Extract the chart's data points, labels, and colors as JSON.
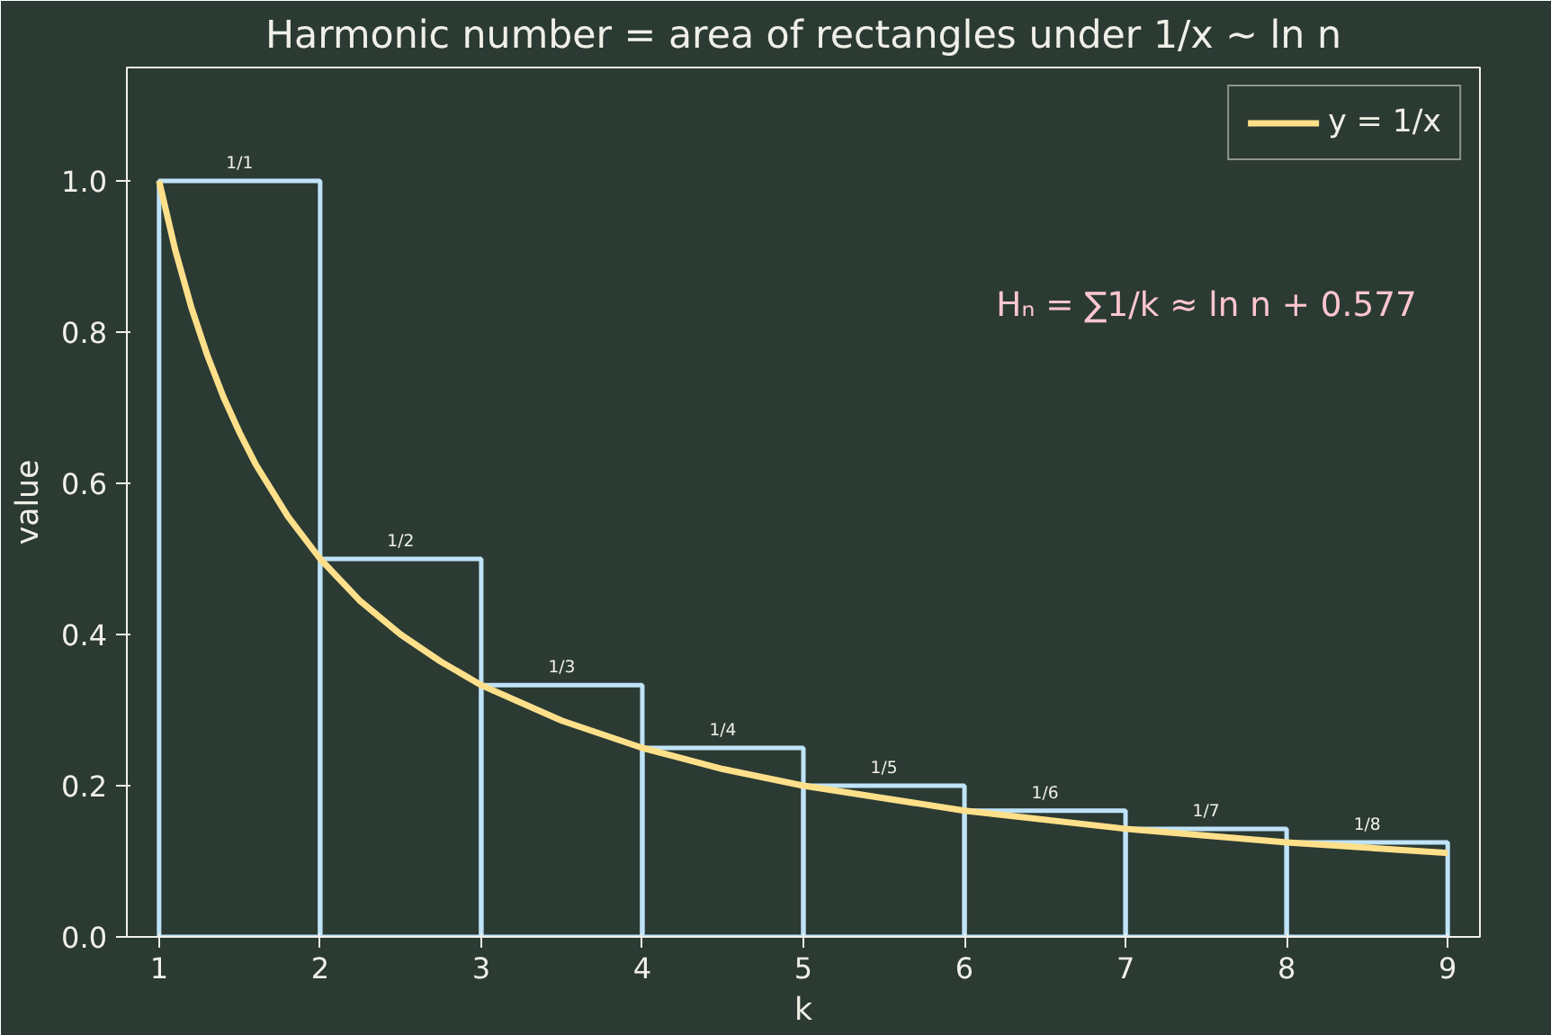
{
  "chart_data": {
    "type": "histogram",
    "title": "Harmonic number = area of rectangles under 1/x ~ ln n",
    "xlabel": "k",
    "ylabel": "value",
    "bins": [
      1,
      2,
      3,
      4,
      5,
      6,
      7,
      8,
      9
    ],
    "values": [
      1,
      0.5,
      0.333,
      0.25,
      0.2,
      0.167,
      0.143,
      0.125
    ],
    "value_labels": [
      "1/1",
      "1/2",
      "1/3",
      "1/4",
      "1/5",
      "1/6",
      "1/7",
      "1/8"
    ],
    "color": "#bfe3f8",
    "series": [
      {
        "type": "line",
        "name": "y = 1/x",
        "color": "#ffe08a",
        "x": [
          1,
          1.1,
          1.2,
          1.3,
          1.4,
          1.5,
          1.6,
          1.8,
          2,
          2.25,
          2.5,
          2.75,
          3,
          3.5,
          4,
          4.5,
          5,
          6,
          7,
          8,
          9
        ],
        "values": [
          1,
          0.909,
          0.833,
          0.769,
          0.714,
          0.667,
          0.625,
          0.556,
          0.5,
          0.444,
          0.4,
          0.364,
          0.333,
          0.286,
          0.25,
          0.222,
          0.2,
          0.167,
          0.143,
          0.125,
          0.111
        ]
      }
    ],
    "annotations": [
      "Hₙ = ∑1/k ≈ ln n + 0.577"
    ],
    "xlim": [
      0.8,
      9.2
    ],
    "ylim": [
      0,
      1.15
    ],
    "xticks": [
      1,
      2,
      3,
      4,
      5,
      6,
      7,
      8,
      9
    ],
    "yticks": [
      {
        "value": 0,
        "label": "0.0"
      },
      {
        "value": 0.2,
        "label": "0.2"
      },
      {
        "value": 0.4,
        "label": "0.4"
      },
      {
        "value": 0.6,
        "label": "0.6"
      },
      {
        "value": 0.8,
        "label": "0.8"
      },
      {
        "value": 1.0,
        "label": "1.0"
      }
    ],
    "grid": false,
    "legend": "top right"
  }
}
